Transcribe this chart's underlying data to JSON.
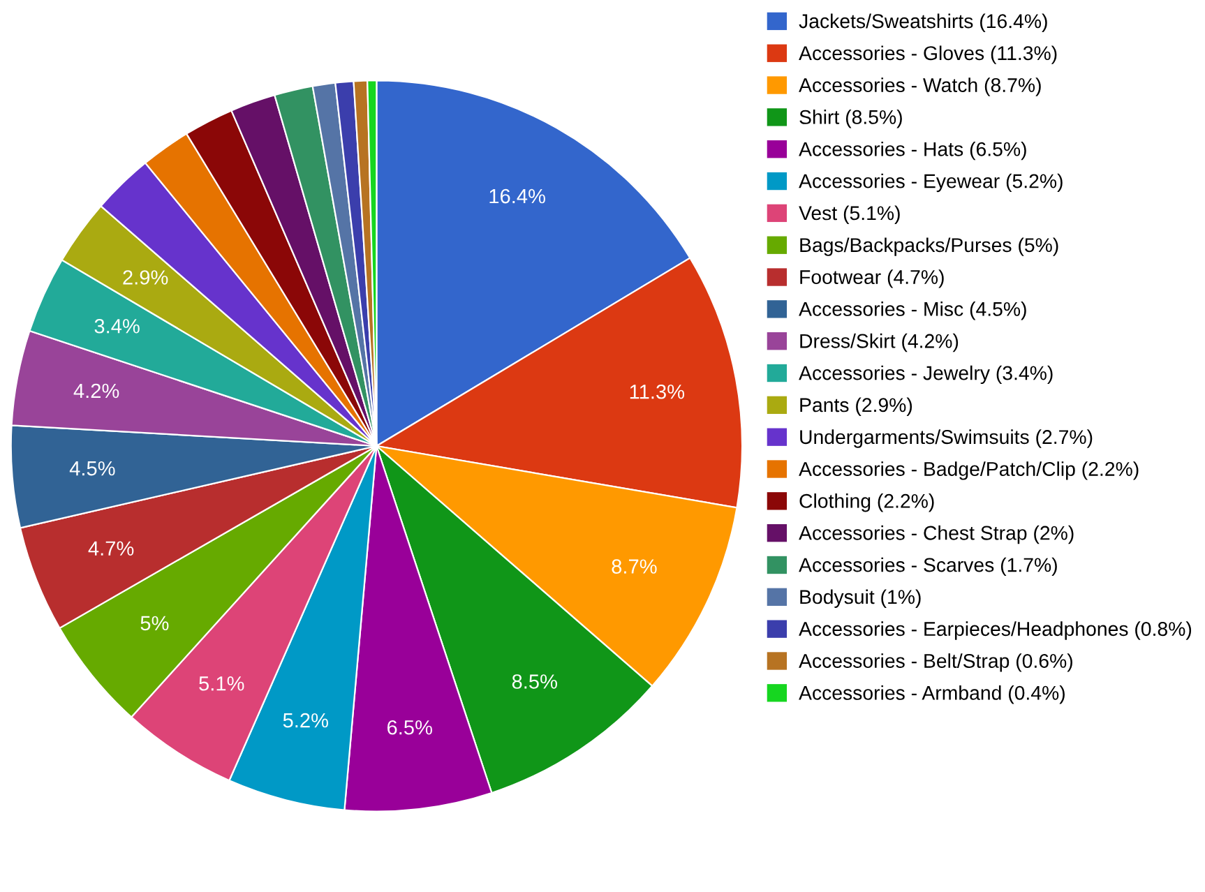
{
  "chart_data": {
    "type": "pie",
    "categories": [
      "Jackets/Sweatshirts (16.4%)",
      "Accessories - Gloves (11.3%)",
      "Accessories - Watch (8.7%)",
      "Shirt (8.5%)",
      "Accessories - Hats (6.5%)",
      "Accessories - Eyewear (5.2%)",
      "Vest (5.1%)",
      "Bags/Backpacks/Purses (5%)",
      "Footwear (4.7%)",
      "Accessories - Misc (4.5%)",
      "Dress/Skirt (4.2%)",
      "Accessories - Jewelry (3.4%)",
      "Pants (2.9%)",
      "Undergarments/Swimsuits (2.7%)",
      "Accessories - Badge/Patch/Clip (2.2%)",
      "Clothing (2.2%)",
      "Accessories - Chest Strap (2%)",
      "Accessories - Scarves (1.7%)",
      "Bodysuit (1%)",
      "Accessories - Earpieces/Headphones (0.8%)",
      "Accessories - Belt/Strap (0.6%)",
      "Accessories - Armband (0.4%)"
    ],
    "values": [
      16.4,
      11.3,
      8.7,
      8.5,
      6.5,
      5.2,
      5.1,
      5,
      4.7,
      4.5,
      4.2,
      3.4,
      2.9,
      2.7,
      2.2,
      2.2,
      2,
      1.7,
      1,
      0.8,
      0.6,
      0.4
    ],
    "value_labels": [
      "16.4%",
      "11.3%",
      "8.7%",
      "8.5%",
      "6.5%",
      "5.2%",
      "5.1%",
      "5%",
      "4.7%",
      "4.5%",
      "4.2%",
      "3.4%",
      "2.9%",
      null,
      null,
      null,
      null,
      null,
      null,
      null,
      null,
      null
    ],
    "colors": [
      "#3366cc",
      "#dc3912",
      "#ff9900",
      "#109618",
      "#990099",
      "#0099c6",
      "#dd4477",
      "#66aa00",
      "#b82e2e",
      "#316395",
      "#994499",
      "#22aa99",
      "#aaaa11",
      "#6633cc",
      "#e67300",
      "#8b0707",
      "#651067",
      "#329262",
      "#5574a6",
      "#3b3eac",
      "#b77322",
      "#16d620"
    ],
    "legend": "right"
  }
}
